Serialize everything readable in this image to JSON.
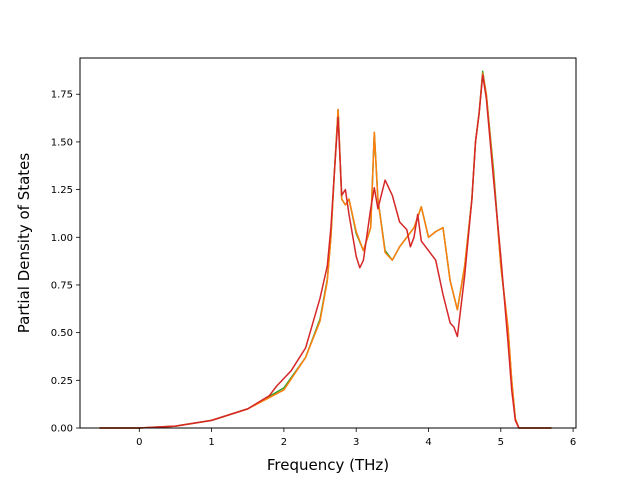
{
  "chart_data": {
    "type": "line",
    "title": "",
    "xlabel": "Frequency (THz)",
    "ylabel": "Partial Density of States",
    "xlim": [
      -0.82,
      6.04
    ],
    "ylim": [
      0,
      1.94
    ],
    "xticks": [
      0,
      1,
      2,
      3,
      4,
      5,
      6
    ],
    "yticks": [
      0.0,
      0.25,
      0.5,
      0.75,
      1.0,
      1.25,
      1.5,
      1.75
    ],
    "ytick_labels": [
      "0.00",
      "0.25",
      "0.50",
      "0.75",
      "1.00",
      "1.25",
      "1.50",
      "1.75"
    ],
    "grid": false,
    "legend": "none",
    "series": [
      {
        "color": "#2ca02c",
        "x": [
          -0.55,
          0,
          0.5,
          1,
          1.5,
          2,
          2.3,
          2.5,
          2.6,
          2.65,
          2.7,
          2.75,
          2.8,
          2.85,
          2.9,
          3.0,
          3.1,
          3.2,
          3.25,
          3.3,
          3.4,
          3.5,
          3.6,
          3.7,
          3.8,
          3.9,
          4.0,
          4.1,
          4.2,
          4.3,
          4.4,
          4.5,
          4.6,
          4.65,
          4.7,
          4.75,
          4.8,
          4.9,
          5.0,
          5.1,
          5.15,
          5.2,
          5.25,
          5.7
        ],
        "y": [
          0,
          0,
          0.01,
          0.04,
          0.1,
          0.21,
          0.37,
          0.57,
          0.78,
          1.0,
          1.35,
          1.67,
          1.2,
          1.17,
          1.2,
          1.02,
          0.93,
          1.05,
          1.55,
          1.2,
          0.93,
          0.88,
          0.95,
          1.0,
          1.05,
          1.16,
          1.0,
          1.03,
          1.05,
          0.77,
          0.62,
          0.85,
          1.2,
          1.5,
          1.65,
          1.87,
          1.75,
          1.35,
          0.85,
          0.52,
          0.25,
          0.05,
          0,
          0
        ]
      },
      {
        "color": "#ff7f0e",
        "x": [
          -0.55,
          0,
          0.5,
          1,
          1.5,
          2,
          2.3,
          2.5,
          2.6,
          2.65,
          2.7,
          2.75,
          2.8,
          2.85,
          2.9,
          3.0,
          3.1,
          3.2,
          3.25,
          3.3,
          3.4,
          3.5,
          3.6,
          3.7,
          3.8,
          3.9,
          4.0,
          4.1,
          4.2,
          4.3,
          4.4,
          4.5,
          4.6,
          4.65,
          4.7,
          4.75,
          4.8,
          4.9,
          5.0,
          5.1,
          5.15,
          5.2,
          5.25,
          5.7
        ],
        "y": [
          0,
          0,
          0.01,
          0.04,
          0.1,
          0.2,
          0.37,
          0.56,
          0.77,
          1.0,
          1.35,
          1.67,
          1.2,
          1.17,
          1.2,
          1.03,
          0.93,
          1.05,
          1.55,
          1.2,
          0.92,
          0.88,
          0.95,
          1.0,
          1.05,
          1.16,
          1.0,
          1.03,
          1.05,
          0.77,
          0.62,
          0.85,
          1.2,
          1.5,
          1.65,
          1.86,
          1.75,
          1.33,
          0.85,
          0.53,
          0.25,
          0.05,
          0,
          0
        ]
      },
      {
        "color": "#d62728",
        "x": [
          -0.55,
          0,
          0.5,
          1,
          1.5,
          1.8,
          1.9,
          2.0,
          2.1,
          2.3,
          2.5,
          2.6,
          2.65,
          2.7,
          2.75,
          2.8,
          2.85,
          2.9,
          3.0,
          3.05,
          3.1,
          3.2,
          3.25,
          3.3,
          3.4,
          3.5,
          3.6,
          3.7,
          3.75,
          3.8,
          3.85,
          3.9,
          4.0,
          4.1,
          4.2,
          4.3,
          4.35,
          4.4,
          4.5,
          4.6,
          4.65,
          4.7,
          4.75,
          4.8,
          4.9,
          5.0,
          5.1,
          5.15,
          5.2,
          5.25,
          5.7
        ],
        "y": [
          0,
          0,
          0.01,
          0.04,
          0.1,
          0.17,
          0.22,
          0.26,
          0.3,
          0.42,
          0.68,
          0.85,
          1.05,
          1.35,
          1.63,
          1.22,
          1.25,
          1.12,
          0.9,
          0.84,
          0.88,
          1.15,
          1.26,
          1.15,
          1.3,
          1.22,
          1.08,
          1.04,
          0.95,
          1.0,
          1.12,
          0.98,
          0.93,
          0.88,
          0.7,
          0.55,
          0.53,
          0.48,
          0.8,
          1.2,
          1.5,
          1.65,
          1.85,
          1.73,
          1.3,
          0.9,
          0.45,
          0.2,
          0.04,
          0,
          0
        ]
      }
    ]
  }
}
